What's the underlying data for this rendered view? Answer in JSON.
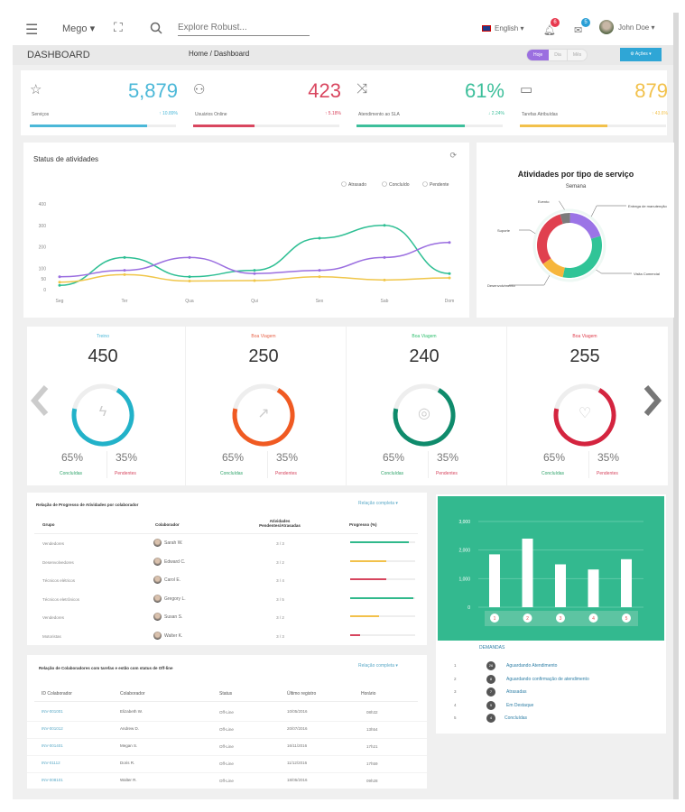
{
  "topbar": {
    "brand": "Mego",
    "search_placeholder": "Explore Robust...",
    "language": "English",
    "notif_count": "6",
    "msg_count": "5",
    "user_name": "John Doe"
  },
  "page_header": {
    "title": "DASHBOARD",
    "breadcrumb": [
      "Home",
      "Dashboard"
    ],
    "range_buttons": [
      "Hoje",
      "Dia",
      "Mês"
    ],
    "active_range": 0,
    "action_label": "Ações"
  },
  "kpis": [
    {
      "icon": "star-icon",
      "value": "5,879",
      "label": "Serviços",
      "delta": "↑ 10.89%",
      "color": "#4bb8d8",
      "progress": 0.8
    },
    {
      "icon": "user-icon",
      "value": "423",
      "label": "Usuários Online",
      "delta": "↑ 5.18%",
      "color": "#d9465f",
      "progress": 0.42
    },
    {
      "icon": "shuffle-icon",
      "value": "61%",
      "label": "Atendimento ao SLA",
      "delta": "↓ 2.24%",
      "color": "#3dbf9b",
      "progress": 0.74
    },
    {
      "icon": "folder-icon",
      "value": "879",
      "label": "Tarefas Atribuídas",
      "delta": "↑ 43.6%",
      "color": "#f2c14b",
      "progress": 0.6
    }
  ],
  "chart_data": [
    {
      "type": "line",
      "title": "Status de atividades",
      "categories": [
        "Seg",
        "Ter",
        "Qua",
        "Qui",
        "Sex",
        "Sab",
        "Dom"
      ],
      "ylim": [
        0,
        400
      ],
      "yticks": [
        0,
        50,
        100,
        200,
        300,
        400
      ],
      "grid": false,
      "legend": "top-right",
      "series": [
        {
          "name": "Atrasado",
          "color": "#2fbf94",
          "values": [
            20,
            150,
            60,
            90,
            240,
            300,
            75
          ]
        },
        {
          "name": "Concluído",
          "color": "#9b6fe0",
          "values": [
            60,
            90,
            150,
            75,
            90,
            150,
            220
          ]
        },
        {
          "name": "Pendente",
          "color": "#f0c64a",
          "values": [
            35,
            70,
            40,
            42,
            60,
            45,
            55
          ]
        }
      ]
    },
    {
      "type": "pie",
      "title": "Atividades por tipo de serviço",
      "subtitle": "Semana",
      "categories": [
        "Entrega de manutenção",
        "Visita Comercial",
        "Desenvolvimento",
        "Suporte",
        "Evento"
      ],
      "values": [
        20,
        33,
        12,
        30,
        5
      ],
      "colors": [
        "#9b74e6",
        "#30c497",
        "#f6b63c",
        "#e0404f",
        "#7b7b7b"
      ]
    },
    {
      "type": "bar",
      "categories": [
        "1",
        "2",
        "3",
        "4",
        "5"
      ],
      "values": [
        1850,
        2400,
        1500,
        1320,
        1680
      ],
      "ylim": [
        0,
        3000
      ],
      "yticks": [
        "0",
        "1,000",
        "2,000",
        "3,000"
      ],
      "background": "#33b98f"
    }
  ],
  "carousel": {
    "items": [
      {
        "title": "Treino",
        "title_color": "#4bb8d8",
        "value": "450",
        "color": "#22b2c9",
        "icon": "bolt-icon",
        "done": "65%",
        "pending": "35%",
        "done_label": "Concluídas",
        "pending_label": "Pendentes",
        "progress": 0.65
      },
      {
        "title": "Boa Viagem",
        "title_color": "#e8654a",
        "value": "250",
        "color": "#f05a22",
        "icon": "trend-icon",
        "done": "65%",
        "pending": "35%",
        "done_label": "Concluídas",
        "pending_label": "Pendentes",
        "progress": 0.65
      },
      {
        "title": "Boa Viagem",
        "title_color": "#2fbf6e",
        "value": "240",
        "color": "#0f8b6c",
        "icon": "target-icon",
        "done": "65%",
        "pending": "35%",
        "done_label": "Concluídas",
        "pending_label": "Pendentes",
        "progress": 0.65
      },
      {
        "title": "Boa Viagem",
        "title_color": "#e0404f",
        "value": "255",
        "color": "#d4243f",
        "icon": "heart-icon",
        "done": "65%",
        "pending": "35%",
        "done_label": "Concluídas",
        "pending_label": "Pendentes",
        "progress": 0.65
      }
    ]
  },
  "progress_table": {
    "title": "Relação de Progresso de Atividades por colaborador",
    "link": "Relação completa",
    "columns": [
      "Grupo",
      "Colaborador",
      "Atividades Pendentes/Atrasadas",
      "Progresso (%)"
    ],
    "rows": [
      {
        "group": "Vendedores",
        "name": "Sarah W.",
        "count": "3 / 3",
        "progress": 0.9,
        "color": "#30b98b"
      },
      {
        "group": "Desenvolvedores",
        "name": "Edward C.",
        "count": "3 / 2",
        "progress": 0.55,
        "color": "#f2c14b"
      },
      {
        "group": "Técnicos elétricos",
        "name": "Carol E.",
        "count": "3 / 4",
        "progress": 0.55,
        "color": "#d6455e"
      },
      {
        "group": "Técnicos eletrônicos",
        "name": "Gregory L.",
        "count": "3 / 5",
        "progress": 0.97,
        "color": "#30b98b"
      },
      {
        "group": "Vendedores",
        "name": "Susan S.",
        "count": "3 / 2",
        "progress": 0.45,
        "color": "#f2c14b"
      },
      {
        "group": "Motoristas",
        "name": "Walter K.",
        "count": "3 / 3",
        "progress": 0.15,
        "color": "#d6455e"
      }
    ]
  },
  "offline_table": {
    "title": "Relação de Colaboradores com tarefas e estão com status de Off-line",
    "link": "Relação completa",
    "columns": [
      "ID Colaborador",
      "Colaborador",
      "Status",
      "Último registro",
      "Horário"
    ],
    "rows": [
      {
        "id": "INV-001001",
        "name": "Elizabeth W.",
        "status": "Off-Line",
        "date": "10/05/2016",
        "time": "08h32"
      },
      {
        "id": "INV-001012",
        "name": "Andrew D.",
        "status": "Off-Line",
        "date": "20/07/2016",
        "time": "13h54"
      },
      {
        "id": "INV-001401",
        "name": "Megan S.",
        "status": "Off-Line",
        "date": "16/11/2016",
        "time": "17h21"
      },
      {
        "id": "INV-01112",
        "name": "Doris R.",
        "status": "Off-Line",
        "date": "11/12/2016",
        "time": "17h59"
      },
      {
        "id": "INV-008101",
        "name": "Walter R.",
        "status": "Off-Line",
        "date": "18/05/2016",
        "time": "09h28"
      }
    ]
  },
  "status_list": {
    "title": "Demandas",
    "items": [
      {
        "num": "1",
        "badge": "26",
        "label": "Aguardando Atendimento"
      },
      {
        "num": "2",
        "badge": "8",
        "label": "Aguardando confirmação de atendimento"
      },
      {
        "num": "3",
        "badge": "7",
        "label": "Atrasadas"
      },
      {
        "num": "4",
        "badge": "9",
        "label": "Em Destaque"
      },
      {
        "num": "5",
        "badge": "4",
        "label": "Concluídas"
      }
    ]
  }
}
